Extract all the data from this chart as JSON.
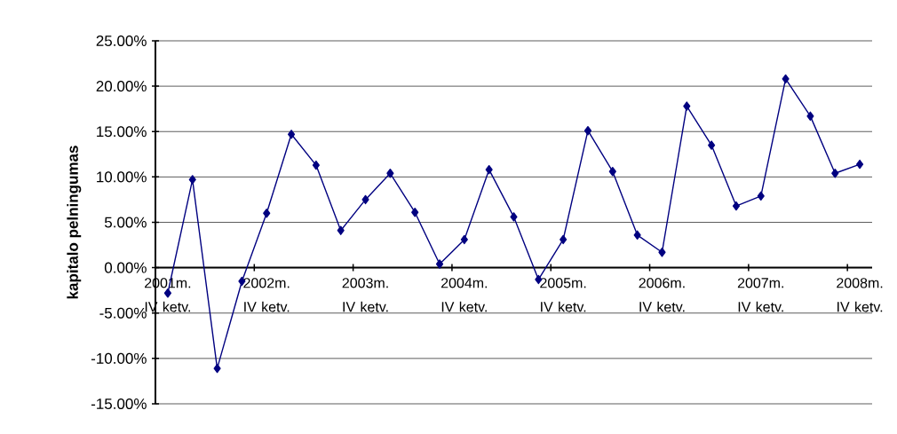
{
  "chart_data": {
    "type": "line",
    "ylabel": "kapitalo pelningumas",
    "categories": [
      "2001m. IV ketv.",
      null,
      null,
      null,
      "2002m. IV ketv.",
      null,
      null,
      null,
      "2003m. IV ketv.",
      null,
      null,
      null,
      "2004m. IV ketv.",
      null,
      null,
      null,
      "2005m. IV ketv.",
      null,
      null,
      null,
      "2006m. IV ketv.",
      null,
      null,
      null,
      "2007m. IV ketv.",
      null,
      null,
      null,
      "2008m. IV ketv."
    ],
    "values": [
      -2.8,
      9.7,
      -11.1,
      -1.5,
      6.0,
      14.7,
      11.3,
      4.1,
      7.5,
      10.4,
      6.1,
      0.4,
      3.1,
      10.8,
      5.6,
      -1.3,
      3.1,
      15.1,
      10.6,
      3.6,
      1.7,
      17.8,
      13.5,
      6.8,
      7.9,
      20.8,
      16.7,
      10.4,
      11.4
    ],
    "color": "#000080",
    "ylim": [
      -15,
      25
    ],
    "yticks": [
      {
        "value": -15,
        "label": "-15.00%"
      },
      {
        "value": -10,
        "label": "-10.00%"
      },
      {
        "value": -5,
        "label": "-5.00%"
      },
      {
        "value": 0,
        "label": "0.00%"
      },
      {
        "value": 5,
        "label": "5.00%"
      },
      {
        "value": 10,
        "label": "10.00%"
      },
      {
        "value": 15,
        "label": "15.00%"
      },
      {
        "value": 20,
        "label": "20.00%"
      },
      {
        "value": 25,
        "label": "25.00%"
      }
    ],
    "grid": "y",
    "marker": "diamond",
    "line_style": "solid"
  }
}
